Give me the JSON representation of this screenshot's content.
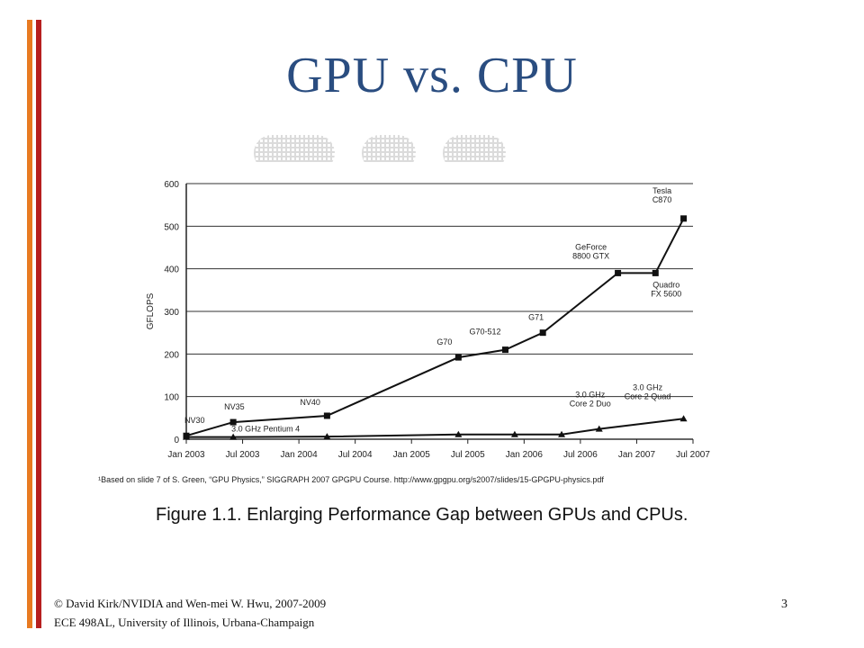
{
  "slide": {
    "title": "GPU vs. CPU",
    "footer_line1": "© David Kirk/NVIDIA and Wen-mei W. Hwu, 2007-2009",
    "footer_line2": "ECE 498AL, University of Illinois, Urbana-Champaign",
    "page_number": "3",
    "accent_colors": {
      "orange": "#e87a21",
      "red": "#b71f1f",
      "title": "#2a4d80"
    }
  },
  "figure": {
    "footnote": "¹Based on slide 7 of S. Green, “GPU Physics,” SIGGRAPH 2007 GPGPU Course. http://www.gpgpu.org/s2007/slides/15-GPGPU-physics.pdf",
    "caption": "Figure 1.1. Enlarging Performance Gap between GPUs and CPUs."
  },
  "chart_data": {
    "type": "line",
    "ylabel": "GFLOPS",
    "xlabel": "",
    "ylim": [
      0,
      600
    ],
    "yticks": [
      0,
      100,
      200,
      300,
      400,
      500,
      600
    ],
    "grid": "horizontal",
    "xticks": [
      "Jan 2003",
      "Jul 2003",
      "Jan 2004",
      "Jul 2004",
      "Jan 2005",
      "Jul 2005",
      "Jan 2006",
      "Jul 2006",
      "Jan 2007",
      "Jul 2007"
    ],
    "series": [
      {
        "marker": "square",
        "points": [
          {
            "x": "Jan 2003",
            "y": 8,
            "label": "NV30"
          },
          {
            "x": "Jun 2003",
            "y": 40,
            "label": "NV35"
          },
          {
            "x": "Apr 2004",
            "y": 55,
            "label": "NV40"
          },
          {
            "x": "Jun 2005",
            "y": 192,
            "label": "G70"
          },
          {
            "x": "Nov 2005",
            "y": 210,
            "label": "G70-512"
          },
          {
            "x": "Mar 2006",
            "y": 250,
            "label": "G71"
          },
          {
            "x": "Nov 2006",
            "y": 390,
            "label": "GeForce\n8800 GTX"
          },
          {
            "x": "Mar 2007",
            "y": 390,
            "label": "Quadro\nFX 5600"
          },
          {
            "x": "Jun 2007",
            "y": 518,
            "label": "Tesla\nC870"
          }
        ]
      },
      {
        "marker": "triangle",
        "points": [
          {
            "x": "Jan 2003",
            "y": 5,
            "label": ""
          },
          {
            "x": "Jun 2003",
            "y": 5,
            "label": "3.0 GHz Pentium 4"
          },
          {
            "x": "Apr 2004",
            "y": 6,
            "label": ""
          },
          {
            "x": "Jun 2005",
            "y": 11,
            "label": ""
          },
          {
            "x": "Dec 2005",
            "y": 11,
            "label": ""
          },
          {
            "x": "May 2006",
            "y": 11,
            "label": ""
          },
          {
            "x": "Sep 2006",
            "y": 24,
            "label": "3.0 GHz\nCore 2 Duo"
          },
          {
            "x": "Jun 2007",
            "y": 48,
            "label": "3.0 GHz\nCore 2 Quad"
          }
        ]
      }
    ]
  }
}
